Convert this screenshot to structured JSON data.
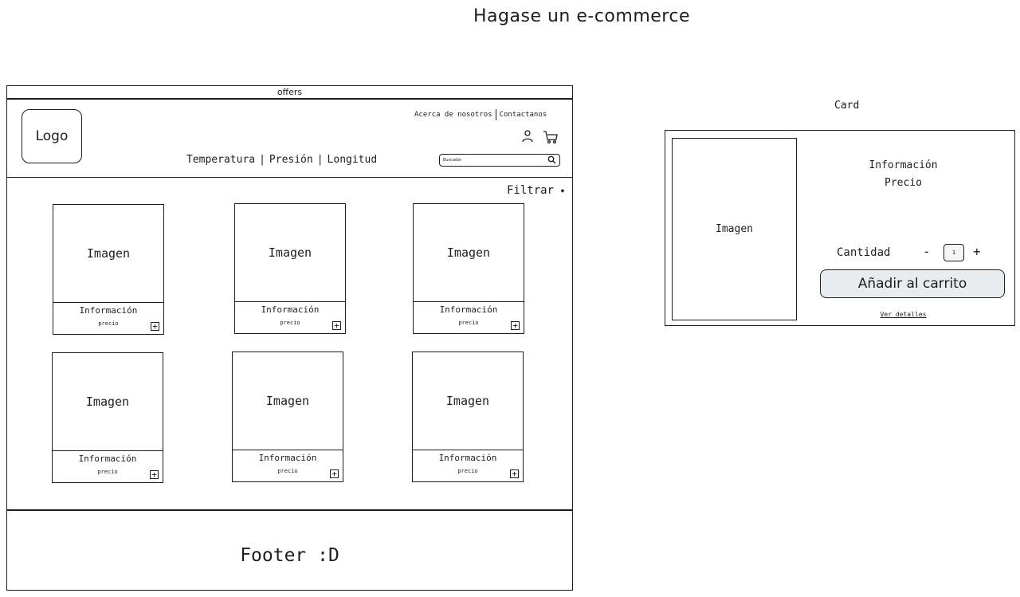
{
  "page_title": "Hagase un e-commerce",
  "header": {
    "offers": "offers",
    "logo": "Logo",
    "top_links": [
      "Acerca de nosotros",
      "Contactanos"
    ],
    "nav": [
      "Temperatura",
      "Presión",
      "Longitud"
    ],
    "search_placeholder": "Buscador",
    "filter": "Filtrar"
  },
  "products": [
    {
      "image": "Imagen",
      "info": "Información",
      "price": "precio"
    },
    {
      "image": "Imagen",
      "info": "Información",
      "price": "precio"
    },
    {
      "image": "Imagen",
      "info": "Información",
      "price": "precio"
    },
    {
      "image": "Imagen",
      "info": "Información",
      "price": "precio"
    },
    {
      "image": "Imagen",
      "info": "Información",
      "price": "precio"
    },
    {
      "image": "Imagen",
      "info": "Información",
      "price": "precio"
    }
  ],
  "footer": {
    "text": "Footer :D"
  },
  "card": {
    "label": "Card",
    "image": "Imagen",
    "info": "Información",
    "price": "Precio",
    "quantity_label": "Cantidad",
    "quantity_value": "1",
    "minus": "-",
    "plus": "+",
    "add_button": "Añadir al carrito",
    "details_link": "Ver detalles"
  },
  "icons": {
    "user": "user-icon",
    "cart": "cart-icon",
    "search": "search-icon",
    "add": "plus-icon",
    "filter_indicator": "small-dot-icon"
  }
}
